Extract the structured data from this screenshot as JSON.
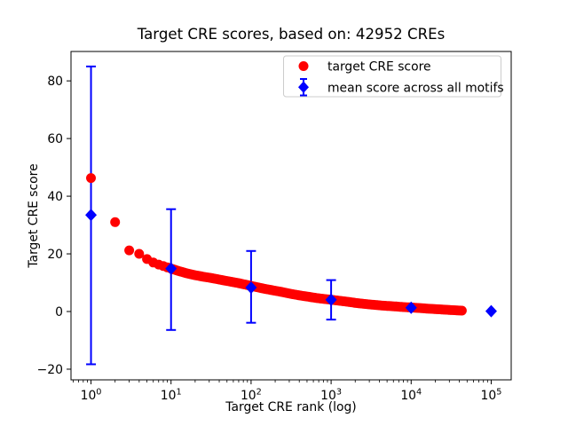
{
  "chart_data": {
    "type": "scatter",
    "title": "Target CRE scores, based on: 42952 CREs",
    "xlabel": "Target CRE rank (log)",
    "ylabel": "Target CRE score",
    "xscale": "log",
    "xlim_log10": [
      -0.25,
      5.25
    ],
    "ylim": [
      -23.7,
      90.2
    ],
    "xticks_exponents": [
      0,
      1,
      2,
      3,
      4,
      5
    ],
    "yticks": [
      -20,
      0,
      20,
      40,
      60,
      80
    ],
    "grid": false,
    "total_cres": 42952,
    "legend": {
      "position": "upper right",
      "entries": [
        {
          "label": "target CRE score",
          "marker": "circle",
          "color": "#ff0000"
        },
        {
          "label": "mean score across all motifs",
          "marker": "diamond-errorbar",
          "color": "#0000ff"
        }
      ]
    },
    "series": [
      {
        "name": "target CRE score",
        "marker": "circle",
        "color": "#ff0000",
        "points": [
          [
            1,
            46.3
          ],
          [
            2,
            31.0
          ],
          [
            3,
            21.2
          ],
          [
            4,
            20.0
          ],
          [
            5,
            18.2
          ],
          [
            6,
            17.0
          ],
          [
            7,
            16.3
          ],
          [
            8,
            15.8
          ],
          [
            9,
            15.3
          ],
          [
            10,
            14.9
          ],
          [
            13,
            13.9
          ],
          [
            16,
            13.2
          ],
          [
            20,
            12.6
          ],
          [
            25,
            12.1
          ],
          [
            32,
            11.6
          ],
          [
            40,
            11.1
          ],
          [
            50,
            10.6
          ],
          [
            65,
            10.0
          ],
          [
            80,
            9.5
          ],
          [
            100,
            8.9
          ],
          [
            130,
            8.2
          ],
          [
            160,
            7.7
          ],
          [
            200,
            7.2
          ],
          [
            250,
            6.7
          ],
          [
            320,
            6.1
          ],
          [
            400,
            5.6
          ],
          [
            500,
            5.2
          ],
          [
            650,
            4.7
          ],
          [
            800,
            4.4
          ],
          [
            1000,
            4.1
          ],
          [
            1300,
            3.7
          ],
          [
            1600,
            3.4
          ],
          [
            2000,
            3.0
          ],
          [
            2500,
            2.7
          ],
          [
            3200,
            2.4
          ],
          [
            4000,
            2.15
          ],
          [
            5000,
            1.95
          ],
          [
            6500,
            1.75
          ],
          [
            8000,
            1.55
          ],
          [
            10000,
            1.4
          ],
          [
            13000,
            1.2
          ],
          [
            16000,
            1.0
          ],
          [
            20000,
            0.85
          ],
          [
            26000,
            0.65
          ],
          [
            32000,
            0.5
          ],
          [
            42952,
            0.3
          ]
        ]
      },
      {
        "name": "mean score across all motifs",
        "marker": "diamond",
        "color": "#0000ff",
        "points": [
          {
            "rank": 1,
            "score": 33.5,
            "err_low": -18.3,
            "err_high": 85.0
          },
          {
            "rank": 10,
            "score": 14.9,
            "err_low": -6.4,
            "err_high": 35.5
          },
          {
            "rank": 100,
            "score": 8.3,
            "err_low": -3.9,
            "err_high": 21.0
          },
          {
            "rank": 1000,
            "score": 4.1,
            "err_low": -2.8,
            "err_high": 10.9
          },
          {
            "rank": 10000,
            "score": 1.3,
            "err_low": null,
            "err_high": null
          },
          {
            "rank": 100000,
            "score": 0.1,
            "err_low": null,
            "err_high": null
          }
        ]
      }
    ]
  },
  "colors": {
    "red": "#ff0000",
    "blue": "#0000ff",
    "axis": "#000000",
    "legend_border": "#cccccc",
    "background": "#ffffff"
  }
}
